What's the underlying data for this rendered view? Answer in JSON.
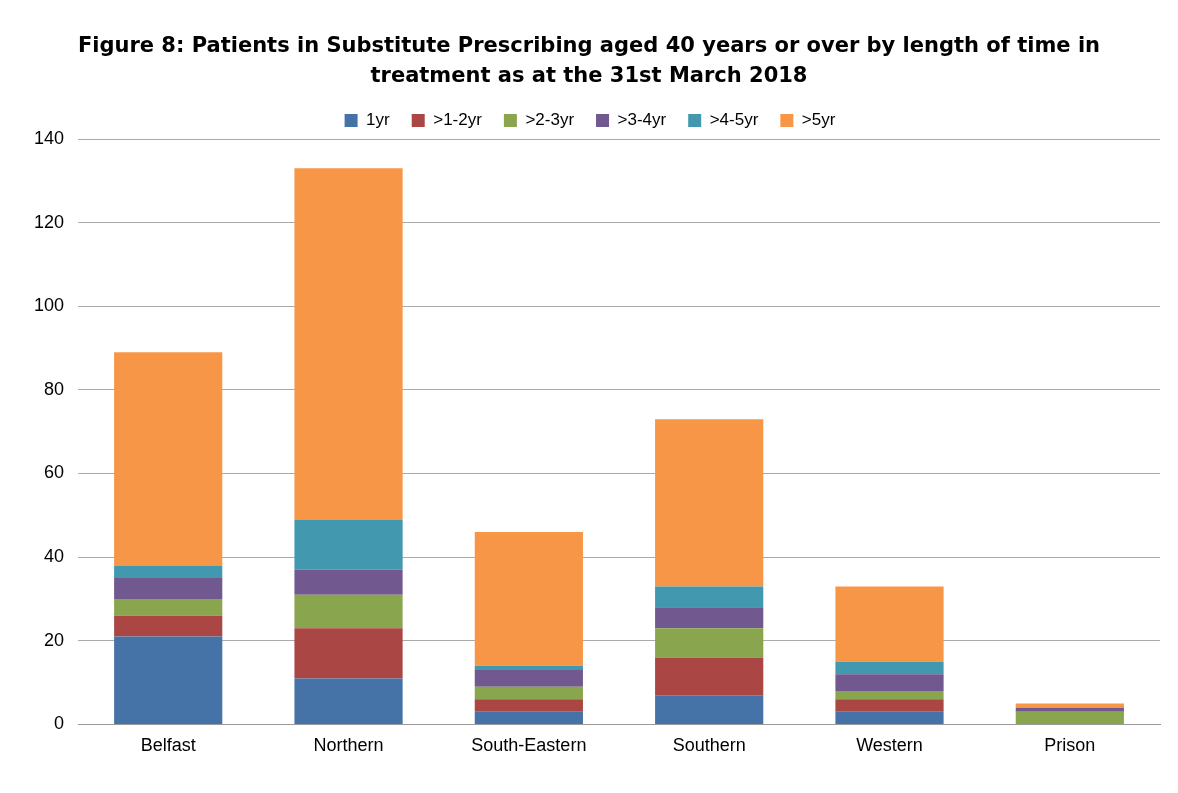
{
  "chart_data": {
    "type": "bar",
    "stacked": true,
    "title": "Figure 8: Patients in Substitute Prescribing aged 40 years or over by length of time in treatment as at the 31st March 2018",
    "categories": [
      "Belfast",
      "Northern",
      "South-Eastern",
      "Southern",
      "Western",
      "Prison"
    ],
    "series": [
      {
        "name": "1yr",
        "color": "#4572a7",
        "values": [
          21,
          11,
          3,
          7,
          3,
          0
        ]
      },
      {
        "name": ">1-2yr",
        "color": "#aa4643",
        "values": [
          5,
          12,
          3,
          9,
          3,
          0
        ]
      },
      {
        "name": ">2-3yr",
        "color": "#89a54e",
        "values": [
          4,
          8,
          3,
          7,
          2,
          3
        ]
      },
      {
        "name": ">3-4yr",
        "color": "#71588f",
        "values": [
          5,
          6,
          4,
          5,
          4,
          1
        ]
      },
      {
        "name": ">4-5yr",
        "color": "#4198af",
        "values": [
          3,
          12,
          1,
          5,
          3,
          0
        ]
      },
      {
        "name": ">5yr",
        "color": "#f79646",
        "values": [
          51,
          84,
          32,
          40,
          18,
          1
        ]
      }
    ],
    "ylim": [
      0,
      140
    ],
    "yticks": [
      0,
      20,
      40,
      60,
      80,
      100,
      120,
      140
    ],
    "grid": "y",
    "legend": "top"
  }
}
